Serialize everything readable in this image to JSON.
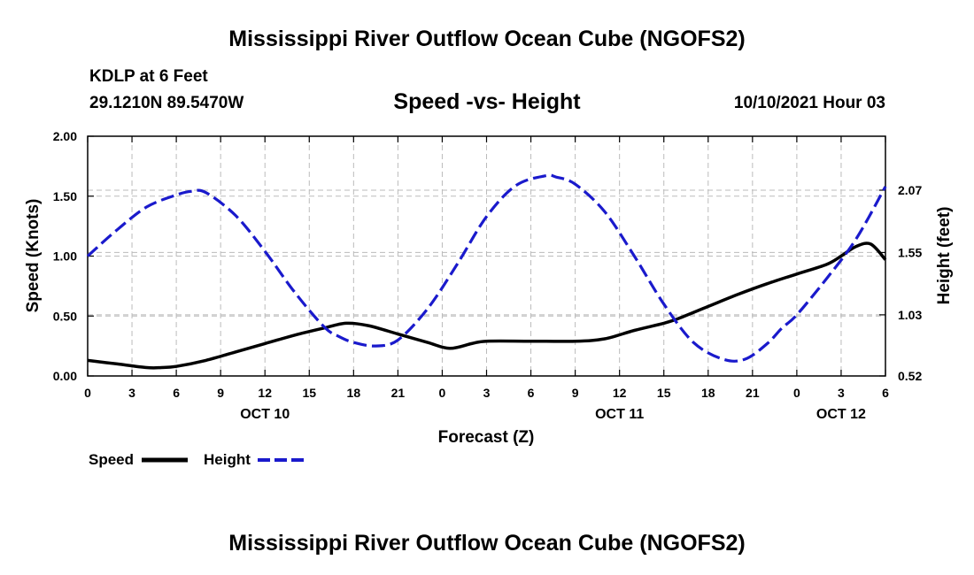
{
  "header": {
    "main_title": "Mississippi River Outflow Ocean Cube (NGOFS2)",
    "station": "KDLP at 6 Feet",
    "coords": "29.1210N  89.5470W",
    "subtitle": "Speed -vs- Height",
    "datetime": "10/10/2021 Hour 03"
  },
  "footer": {
    "title": "Mississippi River Outflow Ocean Cube (NGOFS2)"
  },
  "legend": {
    "speed_label": "Speed",
    "height_label": "Height"
  },
  "colors": {
    "speed": "#000000",
    "height": "#1a1acc",
    "grid": "#bbbbbb"
  },
  "chart_data": {
    "type": "line",
    "title": "Speed -vs- Height",
    "xlabel": "Forecast (Z)",
    "ylabel": "Speed (Knots)",
    "y2label": "Height (feet)",
    "xlim": [
      0,
      54
    ],
    "ylim": [
      0,
      2.0
    ],
    "y2lim": [
      0.52,
      2.52
    ],
    "x_ticks": [
      0,
      3,
      6,
      9,
      12,
      15,
      18,
      21,
      24,
      27,
      30,
      33,
      36,
      39,
      42,
      45,
      48,
      51,
      54
    ],
    "x_tick_labels": [
      "0",
      "3",
      "6",
      "9",
      "12",
      "15",
      "18",
      "21",
      "0",
      "3",
      "6",
      "9",
      "12",
      "15",
      "18",
      "21",
      "0",
      "3",
      "6"
    ],
    "day_labels": [
      {
        "x": 12,
        "label": "OCT 10"
      },
      {
        "x": 36,
        "label": "OCT 11"
      },
      {
        "x": 51,
        "label": "OCT 12"
      }
    ],
    "y_ticks": [
      0,
      0.5,
      1.0,
      1.5,
      2.0
    ],
    "y_tick_labels": [
      "0.00",
      "0.50",
      "1.00",
      "1.50",
      "2.00"
    ],
    "y2_ticks": [
      0.52,
      1.03,
      1.55,
      2.07
    ],
    "y2_tick_labels": [
      "0.52",
      "1.03",
      "1.55",
      "2.07"
    ],
    "series": [
      {
        "name": "Speed",
        "axis": "left",
        "style": "solid",
        "x": [
          0,
          2,
          4,
          5,
          6,
          8,
          10,
          12,
          14,
          16,
          17.5,
          19,
          21,
          23,
          24.5,
          26,
          27,
          30,
          33,
          35,
          37,
          39,
          40,
          42,
          44,
          46,
          48,
          50,
          51,
          52,
          53,
          54
        ],
        "y": [
          0.13,
          0.1,
          0.07,
          0.07,
          0.08,
          0.13,
          0.2,
          0.27,
          0.34,
          0.4,
          0.44,
          0.42,
          0.35,
          0.28,
          0.23,
          0.27,
          0.29,
          0.29,
          0.29,
          0.31,
          0.38,
          0.44,
          0.48,
          0.58,
          0.68,
          0.77,
          0.85,
          0.93,
          1.0,
          1.08,
          1.1,
          0.97
        ]
      },
      {
        "name": "Height",
        "axis": "right",
        "style": "dashed",
        "x": [
          0,
          2,
          4,
          6,
          7,
          8,
          10,
          12,
          14,
          16,
          17,
          18,
          19.5,
          21,
          23,
          25,
          27,
          29,
          31,
          31.7,
          33,
          35,
          37,
          39,
          41,
          43,
          44.5,
          46,
          47,
          48,
          50,
          52,
          54
        ],
        "y": [
          1.52,
          1.74,
          1.93,
          2.03,
          2.06,
          2.05,
          1.86,
          1.56,
          1.22,
          0.93,
          0.85,
          0.8,
          0.77,
          0.82,
          1.08,
          1.45,
          1.85,
          2.11,
          2.19,
          2.18,
          2.12,
          1.89,
          1.52,
          1.12,
          0.8,
          0.66,
          0.66,
          0.79,
          0.92,
          1.03,
          1.33,
          1.66,
          2.1
        ]
      }
    ]
  }
}
